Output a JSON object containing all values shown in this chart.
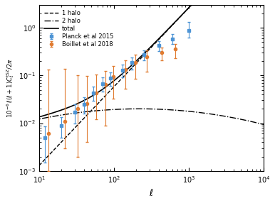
{
  "xlim": [
    10,
    10000
  ],
  "ylim": [
    0.001,
    3.0
  ],
  "xlabel": "$\\ell$",
  "ylabel": "$10^{-6}\\,\\ell(\\ell+1)C_\\ell^{\\rm tSZ}/2\\pi$",
  "planck_l": [
    12,
    20,
    30,
    40,
    53,
    70,
    90,
    130,
    175,
    250,
    400,
    600,
    1000
  ],
  "planck_y": [
    0.005,
    0.009,
    0.017,
    0.025,
    0.043,
    0.068,
    0.088,
    0.13,
    0.185,
    0.27,
    0.42,
    0.57,
    0.88
  ],
  "planck_yerr_lo": [
    0.0035,
    0.004,
    0.007,
    0.009,
    0.014,
    0.022,
    0.028,
    0.038,
    0.052,
    0.065,
    0.095,
    0.115,
    0.26
  ],
  "planck_yerr_hi": [
    0.0035,
    0.0045,
    0.008,
    0.01,
    0.015,
    0.023,
    0.028,
    0.04,
    0.055,
    0.068,
    0.1,
    0.16,
    0.42
  ],
  "boillet_l": [
    12,
    20,
    30,
    40,
    53,
    70,
    90,
    130,
    175,
    250,
    400,
    600
  ],
  "boillet_y": [
    0.006,
    0.011,
    0.02,
    0.026,
    0.043,
    0.065,
    0.095,
    0.135,
    0.19,
    0.245,
    0.305,
    0.355
  ],
  "boillet_yerr_lo": [
    0.005,
    0.008,
    0.018,
    0.022,
    0.031,
    0.056,
    0.062,
    0.082,
    0.105,
    0.125,
    0.1,
    0.125
  ],
  "boillet_yerr_hi": [
    0.125,
    0.125,
    0.082,
    0.072,
    0.062,
    0.058,
    0.062,
    0.072,
    0.082,
    0.092,
    0.082,
    0.105
  ],
  "color_planck": "#4d94d5",
  "color_boillet": "#e07b30",
  "bg_color": "#ffffff",
  "marker_planck": "s",
  "marker_boillet": "o"
}
